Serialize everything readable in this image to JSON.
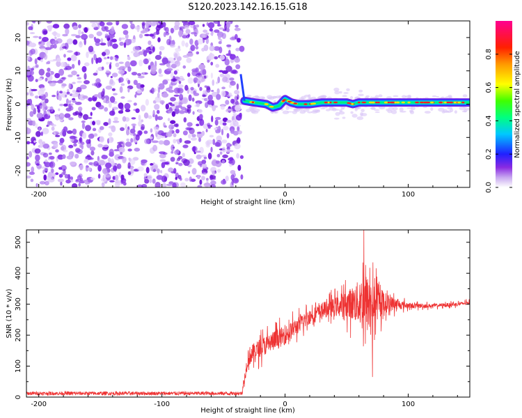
{
  "title": "S120.2023.142.16.15.G18",
  "chart_data": [
    {
      "type": "heatmap",
      "name": "spectrogram",
      "xlabel": "Height of straight line (km)",
      "ylabel": "Frequency (Hz)",
      "xlim": [
        -210,
        150
      ],
      "ylim": [
        -25,
        25
      ],
      "xticks": [
        -200,
        -100,
        0,
        100
      ],
      "yticks": [
        -20,
        -10,
        0,
        10,
        20
      ],
      "noise_region_x": [
        -210,
        -35
      ],
      "signal_ridge": [
        {
          "x": -33,
          "y": 1
        },
        {
          "x": -25,
          "y": 0.5
        },
        {
          "x": -15,
          "y": 0
        },
        {
          "x": -10,
          "y": -1
        },
        {
          "x": -5,
          "y": -0.5
        },
        {
          "x": 0,
          "y": 1.5
        },
        {
          "x": 5,
          "y": 0.5
        },
        {
          "x": 10,
          "y": 0
        },
        {
          "x": 20,
          "y": 0
        },
        {
          "x": 30,
          "y": 0.5
        },
        {
          "x": 40,
          "y": 0.5
        },
        {
          "x": 50,
          "y": 0.5
        },
        {
          "x": 55,
          "y": 0
        },
        {
          "x": 60,
          "y": 0.5
        },
        {
          "x": 70,
          "y": 0.5
        },
        {
          "x": 80,
          "y": 0.5
        },
        {
          "x": 90,
          "y": 0.5
        },
        {
          "x": 100,
          "y": 0.5
        },
        {
          "x": 110,
          "y": 0.5
        },
        {
          "x": 120,
          "y": 0.5
        },
        {
          "x": 130,
          "y": 0.5
        },
        {
          "x": 140,
          "y": 0.5
        },
        {
          "x": 150,
          "y": 0.5
        }
      ],
      "colorbar": {
        "label": "Normalized spectral amplitude",
        "range": [
          0,
          1
        ],
        "ticks": [
          "0.0",
          "0.2",
          "0.4",
          "0.6",
          "0.8"
        ]
      }
    },
    {
      "type": "line",
      "name": "snr",
      "xlabel": "Height of straight line (km)",
      "ylabel": "SNR (10 * v/v)",
      "xlim": [
        -210,
        150
      ],
      "ylim": [
        0,
        540
      ],
      "xticks": [
        -200,
        -100,
        0,
        100
      ],
      "yticks": [
        0,
        100,
        200,
        300,
        400,
        500
      ],
      "color": "#ee3333",
      "envelope": {
        "x": [
          -210,
          -60,
          -35,
          -30,
          -20,
          -10,
          0,
          10,
          20,
          30,
          40,
          50,
          60,
          65,
          70,
          80,
          90,
          100,
          120,
          140,
          150
        ],
        "mean": [
          12,
          12,
          12,
          130,
          160,
          180,
          200,
          230,
          260,
          280,
          290,
          300,
          305,
          300,
          300,
          305,
          300,
          295,
          295,
          300,
          305
        ],
        "amp": [
          6,
          6,
          6,
          50,
          50,
          55,
          50,
          45,
          40,
          40,
          50,
          70,
          120,
          180,
          120,
          60,
          30,
          15,
          10,
          10,
          10
        ]
      },
      "peaks": [
        {
          "x": 64,
          "y": 540
        },
        {
          "x": 71,
          "y": 65
        }
      ]
    }
  ]
}
